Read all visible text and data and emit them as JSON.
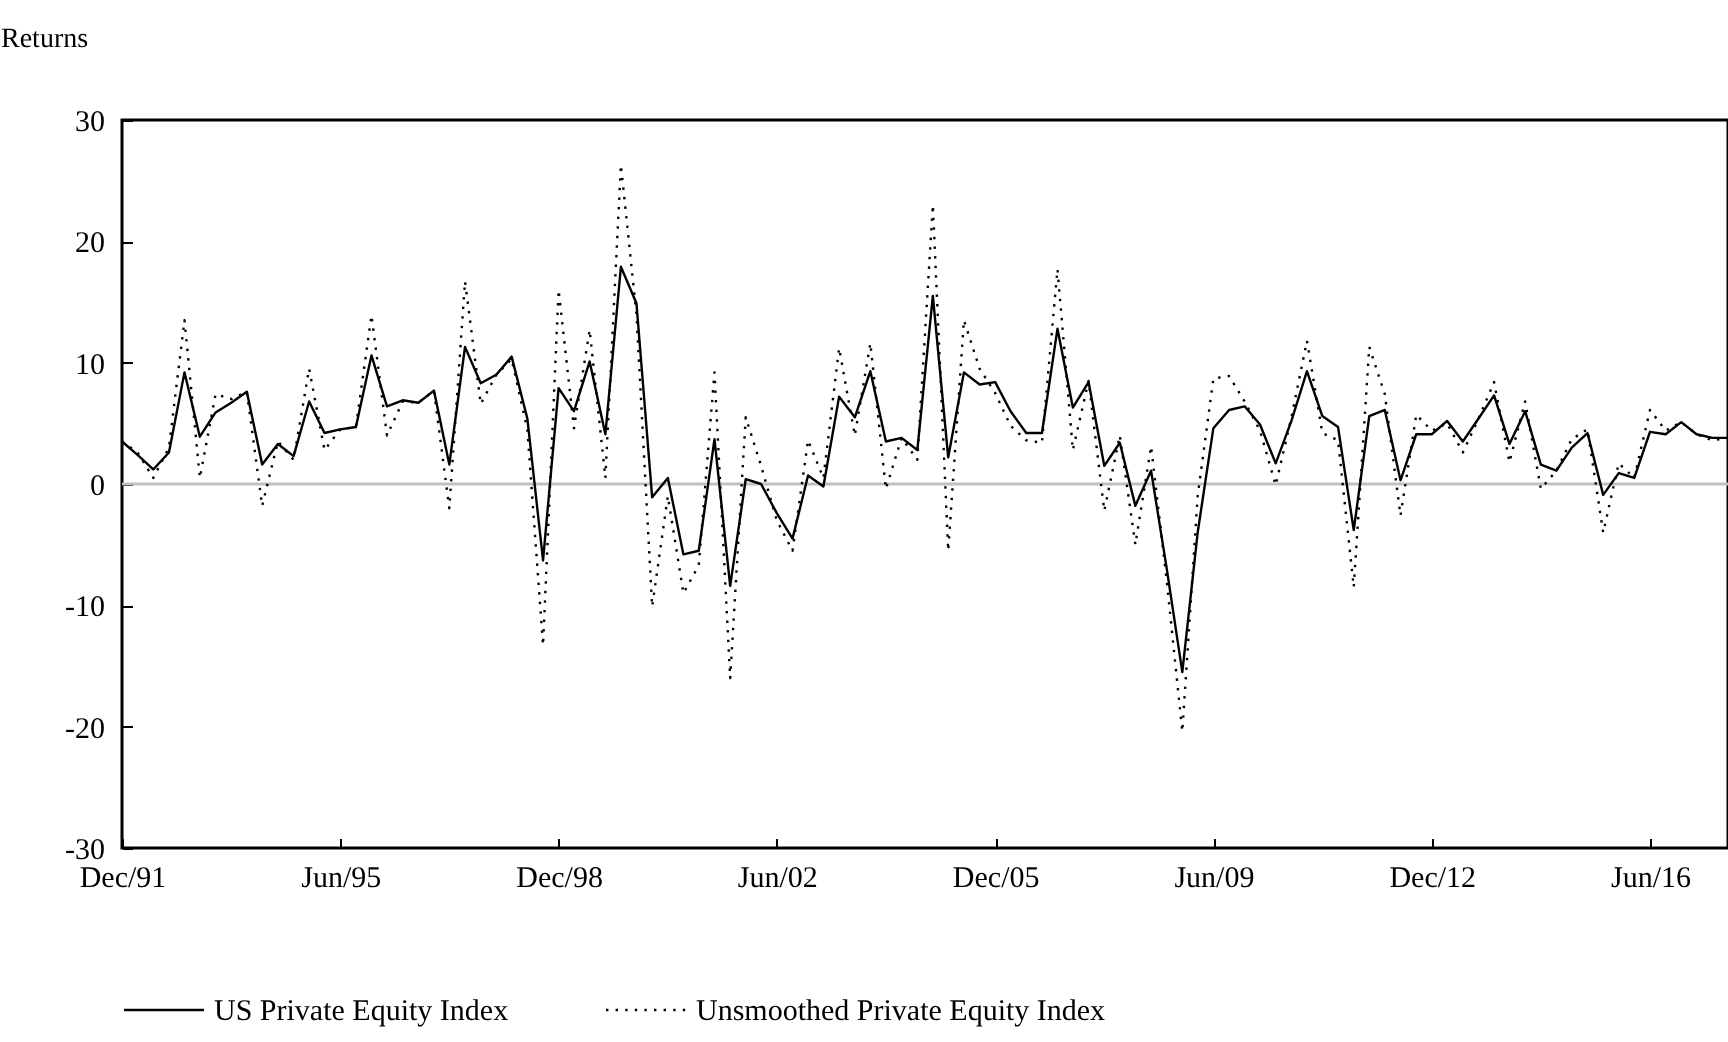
{
  "chart_data": {
    "type": "line",
    "ylabel": "Returns",
    "x": [
      "1991-12",
      "1992-03",
      "1992-06",
      "1992-09",
      "1992-12",
      "1993-03",
      "1993-06",
      "1993-09",
      "1993-12",
      "1994-03",
      "1994-06",
      "1994-09",
      "1994-12",
      "1995-03",
      "1995-06",
      "1995-09",
      "1995-12",
      "1996-03",
      "1996-06",
      "1996-09",
      "1996-12",
      "1997-03",
      "1997-06",
      "1997-09",
      "1997-12",
      "1998-03",
      "1998-06",
      "1998-09",
      "1998-12",
      "1999-03",
      "1999-06",
      "1999-09",
      "1999-12",
      "2000-03",
      "2000-06",
      "2000-09",
      "2000-12",
      "2001-03",
      "2001-06",
      "2001-09",
      "2001-12",
      "2002-03",
      "2002-06",
      "2002-09",
      "2002-12",
      "2003-03",
      "2003-06",
      "2003-09",
      "2003-12",
      "2004-03",
      "2004-06",
      "2004-09",
      "2004-12",
      "2005-03",
      "2005-06",
      "2005-09",
      "2005-12",
      "2006-03",
      "2006-06",
      "2006-09",
      "2006-12",
      "2007-03",
      "2007-06",
      "2007-09",
      "2007-12",
      "2008-03",
      "2008-06",
      "2008-09",
      "2008-12",
      "2009-03",
      "2009-06",
      "2009-09",
      "2009-12",
      "2010-03",
      "2010-06",
      "2010-09",
      "2010-12",
      "2011-03",
      "2011-06",
      "2011-09",
      "2011-12",
      "2012-03",
      "2012-06",
      "2012-09",
      "2012-12",
      "2013-03",
      "2013-06",
      "2013-09",
      "2013-12",
      "2014-03",
      "2014-06",
      "2014-09",
      "2014-12",
      "2015-03",
      "2015-06",
      "2015-09",
      "2015-12",
      "2016-03",
      "2016-06",
      "2016-09",
      "2016-12",
      "2017-03",
      "2017-06",
      "2017-09"
    ],
    "series": [
      {
        "name": "US Private Equity Index",
        "color": "#000000",
        "line_style": "solid",
        "values": [
          3.5,
          2.4,
          1.2,
          2.6,
          9.2,
          3.9,
          5.9,
          6.7,
          7.6,
          1.6,
          3.3,
          2.3,
          6.8,
          4.2,
          4.5,
          4.7,
          10.6,
          6.4,
          6.9,
          6.7,
          7.7,
          1.6,
          11.3,
          8.3,
          9.0,
          10.5,
          5.4,
          -6.3,
          7.9,
          6.0,
          10.1,
          4.1,
          17.9,
          14.9,
          -1.1,
          0.5,
          -5.8,
          -5.5,
          3.7,
          -8.4,
          0.4,
          0.0,
          -2.4,
          -4.5,
          0.7,
          -0.2,
          7.2,
          5.5,
          9.3,
          3.5,
          3.8,
          2.8,
          15.5,
          2.2,
          9.2,
          8.2,
          8.4,
          6.0,
          4.2,
          4.2,
          12.8,
          6.3,
          8.4,
          1.5,
          3.4,
          -1.8,
          1.1,
          -7.0,
          -15.5,
          -4.0,
          4.6,
          6.1,
          6.4,
          4.9,
          1.7,
          5.2,
          9.3,
          5.6,
          4.7,
          -3.8,
          5.6,
          6.1,
          0.3,
          4.1,
          4.1,
          5.2,
          3.5,
          5.4,
          7.3,
          3.3,
          6.0,
          1.6,
          1.1,
          3.0,
          4.2,
          -0.9,
          0.9,
          0.5,
          4.3,
          4.1,
          5.1,
          4.1,
          3.8,
          3.8
        ]
      },
      {
        "name": "Unsmoothed Private Equity Index",
        "color": "#000000",
        "line_style": "dotted",
        "values": [
          3.5,
          2.6,
          0.5,
          3.0,
          13.5,
          0.5,
          7.4,
          7.0,
          7.6,
          -1.8,
          3.5,
          2.0,
          9.5,
          2.8,
          4.5,
          4.7,
          13.9,
          4.0,
          6.8,
          6.7,
          7.7,
          -2.0,
          16.7,
          6.6,
          9.0,
          10.3,
          4.5,
          -13.3,
          16.0,
          4.6,
          12.7,
          0.5,
          26.3,
          14.0,
          -10.1,
          -1.0,
          -9.0,
          -6.7,
          9.2,
          -16.0,
          5.5,
          1.5,
          -3.0,
          -5.5,
          3.6,
          0.5,
          11.2,
          4.0,
          11.6,
          -0.4,
          3.8,
          2.0,
          23.0,
          -5.5,
          13.5,
          9.5,
          7.5,
          4.8,
          3.6,
          3.4,
          17.7,
          2.8,
          8.5,
          -2.2,
          4.0,
          -5.0,
          3.1,
          -8.0,
          -20.4,
          -1.0,
          8.7,
          8.9,
          6.8,
          4.4,
          -0.1,
          5.5,
          11.8,
          4.2,
          3.6,
          -8.5,
          11.3,
          7.4,
          -2.6,
          5.7,
          4.4,
          5.0,
          2.6,
          5.4,
          8.4,
          1.8,
          6.8,
          -0.4,
          1.1,
          3.7,
          4.5,
          -4.0,
          1.7,
          0.5,
          6.1,
          4.4,
          5.1,
          4.1,
          3.6,
          3.8
        ]
      }
    ],
    "xlim": [
      "1991-12",
      "2017-09"
    ],
    "xticks": [
      {
        "value": "1991-12",
        "label": "Dec/91"
      },
      {
        "value": "1995-06",
        "label": "Jun/95"
      },
      {
        "value": "1998-12",
        "label": "Dec/98"
      },
      {
        "value": "2002-06",
        "label": "Jun/02"
      },
      {
        "value": "2005-12",
        "label": "Dec/05"
      },
      {
        "value": "2009-06",
        "label": "Jun/09"
      },
      {
        "value": "2012-12",
        "label": "Dec/12"
      },
      {
        "value": "2016-06",
        "label": "Jun/16"
      }
    ],
    "ylim": [
      -30,
      30
    ],
    "yticks": [
      -30,
      -20,
      -10,
      0,
      10,
      20,
      30
    ],
    "ref_lines": [
      {
        "axis": "y",
        "value": 0,
        "color": "#c0c0c0"
      }
    ],
    "grid": false,
    "legend": "bottom"
  }
}
